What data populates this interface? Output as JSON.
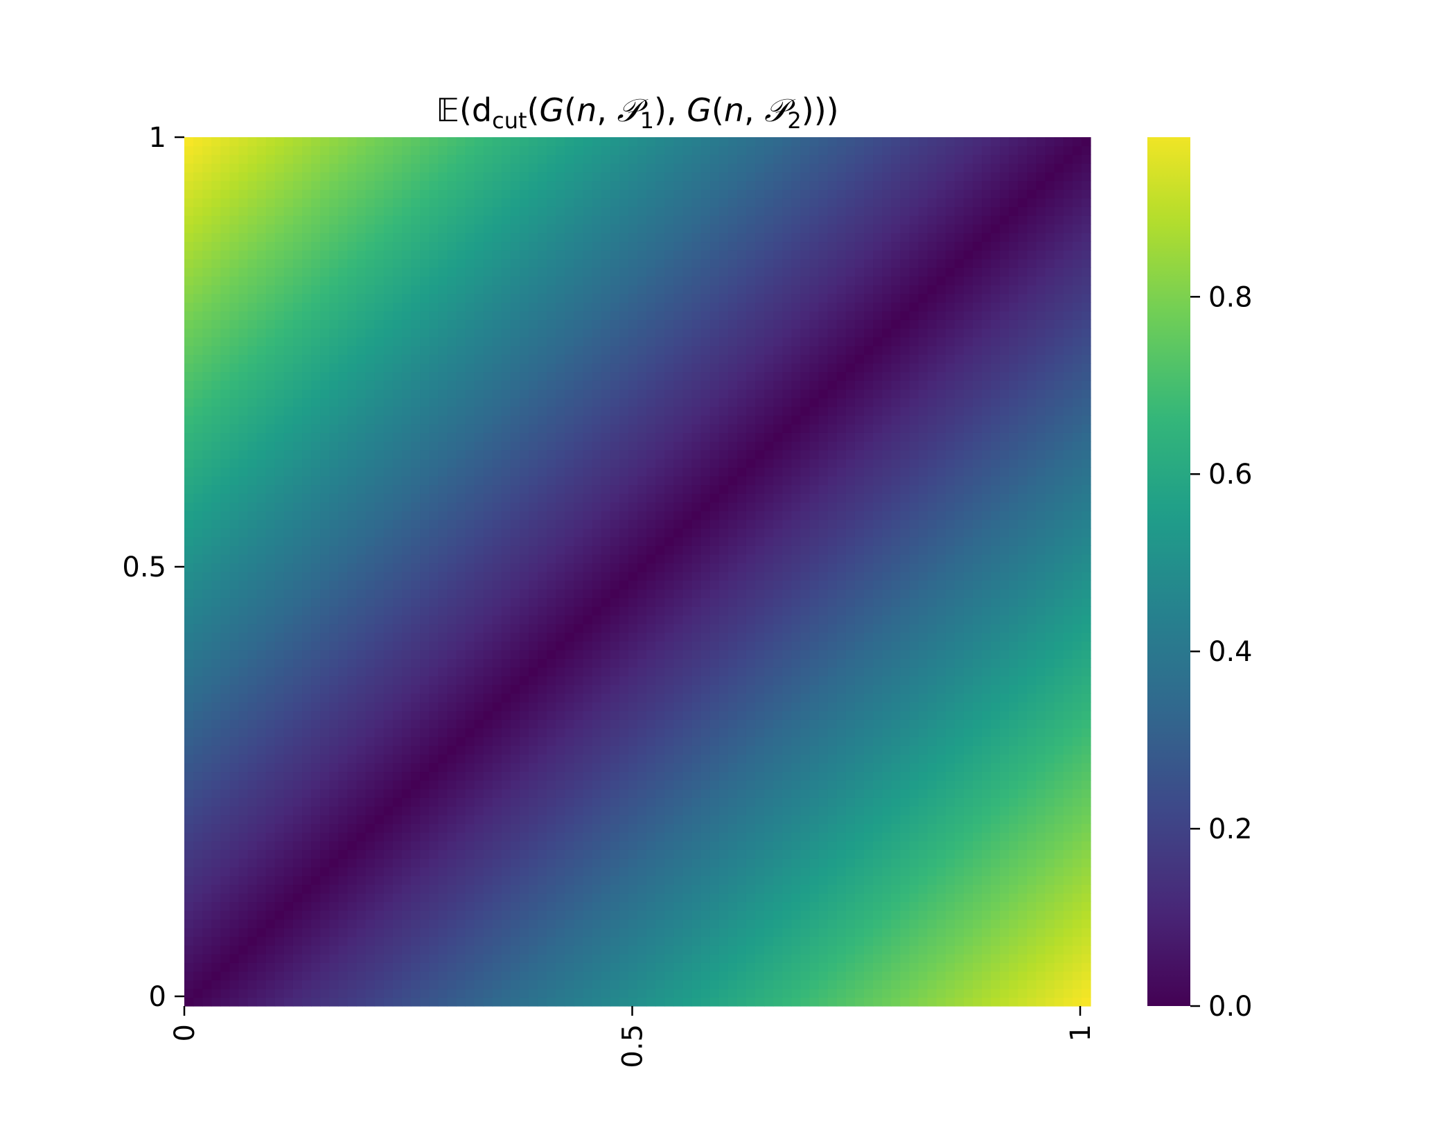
{
  "chart_data": {
    "type": "heatmap",
    "title": {
      "parts": [
        {
          "text": "𝔼(d",
          "style": "normal"
        },
        {
          "text": "cut",
          "style": "sub"
        },
        {
          "text": "(",
          "style": "normal"
        },
        {
          "text": "G",
          "style": "italic"
        },
        {
          "text": "(",
          "style": "normal"
        },
        {
          "text": "n",
          "style": "italic"
        },
        {
          "text": ", ",
          "style": "normal"
        },
        {
          "text": "𝒫",
          "style": "italic"
        },
        {
          "text": "1",
          "style": "sub"
        },
        {
          "text": "), ",
          "style": "normal"
        },
        {
          "text": "G",
          "style": "italic"
        },
        {
          "text": "(",
          "style": "normal"
        },
        {
          "text": "n",
          "style": "italic"
        },
        {
          "text": ", ",
          "style": "normal"
        },
        {
          "text": "𝒫",
          "style": "italic"
        },
        {
          "text": "2",
          "style": "sub"
        },
        {
          "text": ")))",
          "style": "normal"
        }
      ]
    },
    "xlabel": "",
    "ylabel": "",
    "x_range": [
      0,
      1
    ],
    "y_range": [
      0,
      1
    ],
    "grid_size": 100,
    "x_ticks": [
      {
        "value": 0,
        "label": "0"
      },
      {
        "value": 0.5,
        "label": "0.5"
      },
      {
        "value": 1,
        "label": "1"
      }
    ],
    "y_ticks": [
      {
        "value": 0,
        "label": "0"
      },
      {
        "value": 0.5,
        "label": "0.5"
      },
      {
        "value": 1,
        "label": "1"
      }
    ],
    "value_function": "abs(p1 - p2)",
    "value_range": [
      0,
      1
    ],
    "colormap": "viridis",
    "colorbar": {
      "ticks": [
        {
          "value": 0.0,
          "label": "0.0"
        },
        {
          "value": 0.2,
          "label": "0.2"
        },
        {
          "value": 0.4,
          "label": "0.4"
        },
        {
          "value": 0.6,
          "label": "0.6"
        },
        {
          "value": 0.8,
          "label": "0.8"
        }
      ],
      "range": [
        0,
        0.98
      ]
    },
    "colors": {
      "viridis_stops": [
        "#440154",
        "#482878",
        "#3e4989",
        "#31688e",
        "#26828e",
        "#1f9e89",
        "#35b779",
        "#6ece58",
        "#b5de2b",
        "#fde725"
      ]
    },
    "legend": "none",
    "grid": false
  }
}
